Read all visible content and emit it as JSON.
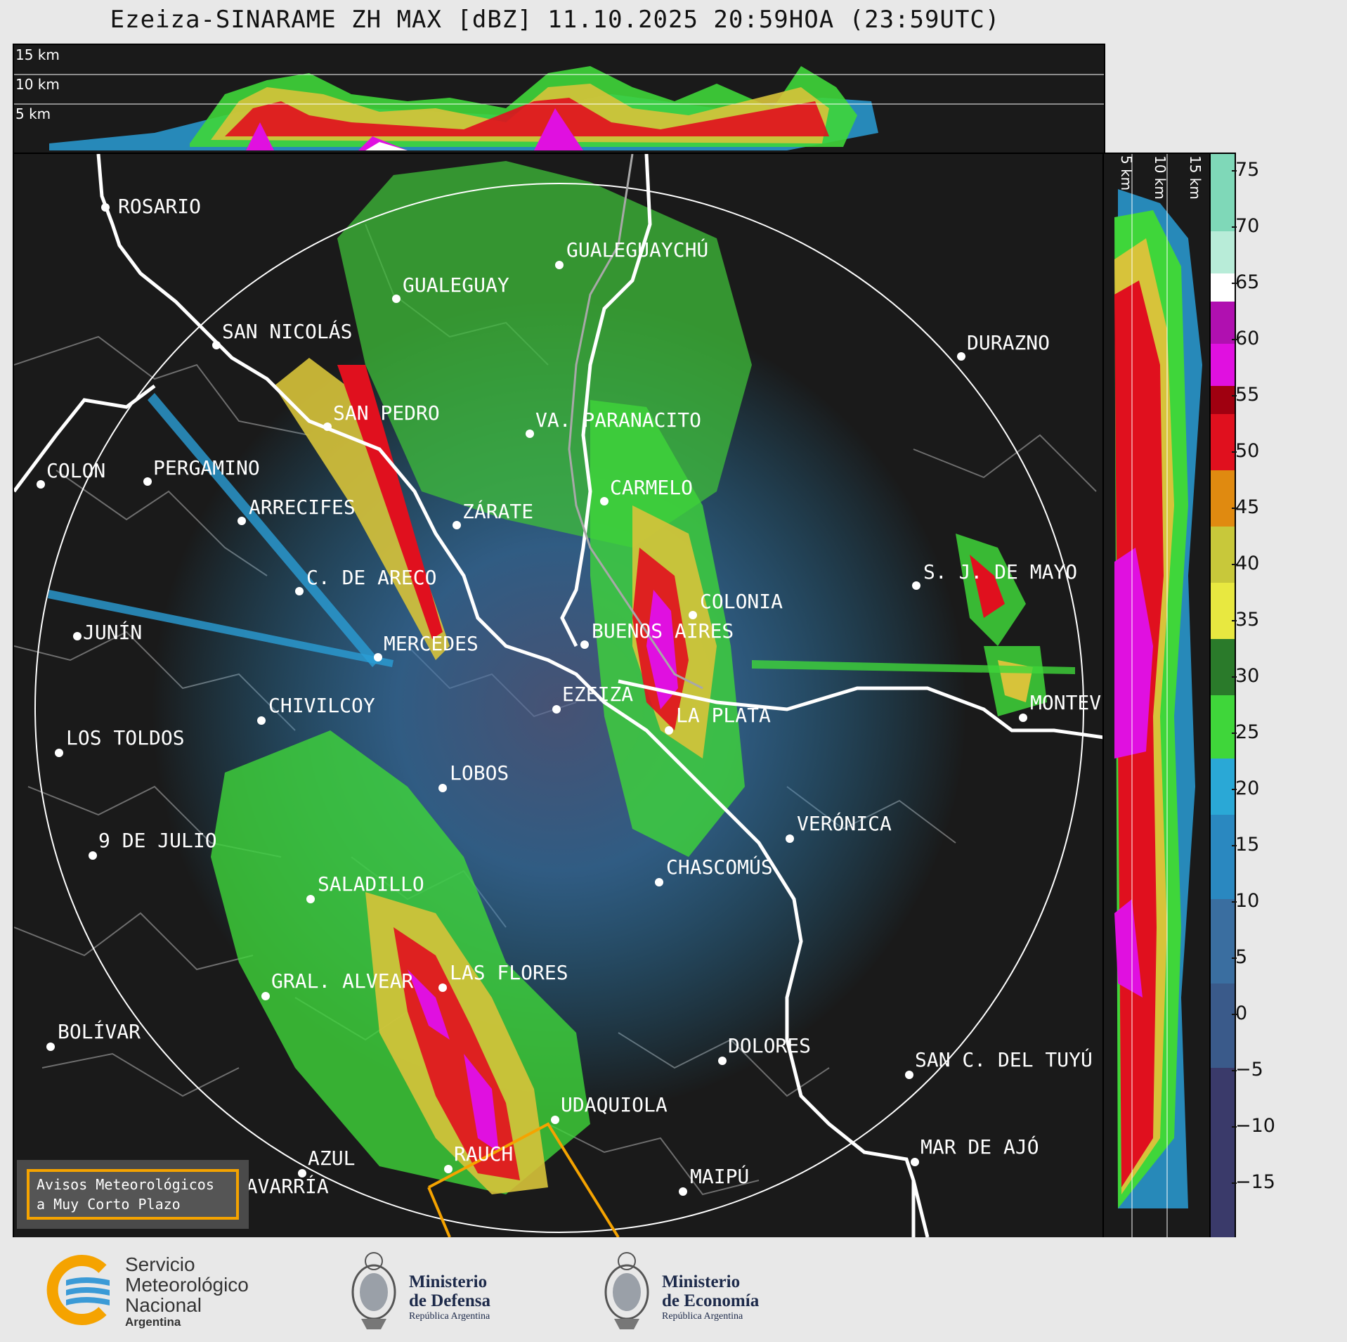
{
  "title": "Ezeiza-SINARAME ZH MAX [dBZ] 11.10.2025 20:59HOA (23:59UTC)",
  "top_panel": {
    "altitude_labels": [
      "15 km",
      "10 km",
      "5 km"
    ]
  },
  "right_panel": {
    "altitude_labels": [
      "5 km",
      "10 km",
      "15 km"
    ]
  },
  "colorbar": {
    "unit": "dBZ",
    "ticks": [
      "75",
      "70",
      "65",
      "60",
      "55",
      "50",
      "45",
      "40",
      "35",
      "30",
      "25",
      "20",
      "15",
      "10",
      "5",
      "0",
      "−5",
      "−10",
      "−15"
    ],
    "range": [
      -20,
      77
    ]
  },
  "cities": [
    {
      "name": "ROSARIO"
    },
    {
      "name": "GUALEGUAYCHÚ"
    },
    {
      "name": "GUALEGUAY"
    },
    {
      "name": "SAN NICOLÁS"
    },
    {
      "name": "DURAZNO"
    },
    {
      "name": "SAN PEDRO"
    },
    {
      "name": "VA. PARANACITO"
    },
    {
      "name": "COLON"
    },
    {
      "name": "PERGAMINO"
    },
    {
      "name": "CARMELO"
    },
    {
      "name": "ARRECIFES"
    },
    {
      "name": "ZÁRATE"
    },
    {
      "name": "S. J. DE MAYO"
    },
    {
      "name": "C. DE ARECO"
    },
    {
      "name": "COLONIA"
    },
    {
      "name": "JUNÍN"
    },
    {
      "name": "BUENOS AIRES"
    },
    {
      "name": "MERCEDES"
    },
    {
      "name": "EZEIZA"
    },
    {
      "name": "MONTEV"
    },
    {
      "name": "CHIVILCOY"
    },
    {
      "name": "LA PLATA"
    },
    {
      "name": "LOS TOLDOS"
    },
    {
      "name": "LOBOS"
    },
    {
      "name": "VERÓNICA"
    },
    {
      "name": "9 DE JULIO"
    },
    {
      "name": "CHASCOMÚS"
    },
    {
      "name": "SALADILLO"
    },
    {
      "name": "GRAL. ALVEAR"
    },
    {
      "name": "LAS FLORES"
    },
    {
      "name": "BOLÍVAR"
    },
    {
      "name": "DOLORES"
    },
    {
      "name": "SAN C. DEL TUYÚ"
    },
    {
      "name": "UDAQUIOLA"
    },
    {
      "name": "MAR DE AJÓ"
    },
    {
      "name": "AZUL"
    },
    {
      "name": "RAUCH"
    },
    {
      "name": "OLAVARRÍA"
    },
    {
      "name": "MAIPÚ"
    }
  ],
  "avisos_box": {
    "line1": "Avisos Meteorológicos",
    "line2": "a Muy Corto Plazo"
  },
  "logos": {
    "smn": {
      "line1": "Servicio",
      "line2": "Meteorológico",
      "line3": "Nacional",
      "line4": "Argentina"
    },
    "defensa": {
      "line1": "Ministerio",
      "line2": "de Defensa",
      "line3": "República Argentina"
    },
    "economia": {
      "line1": "Ministerio",
      "line2": "de Economía",
      "line3": "República Argentina"
    }
  },
  "colors": {
    "background": "#1a1a1a",
    "range_ring": "#ffffff",
    "coastline": "#ffffff",
    "borders": "#808080",
    "warning_box": "#f5a300"
  }
}
